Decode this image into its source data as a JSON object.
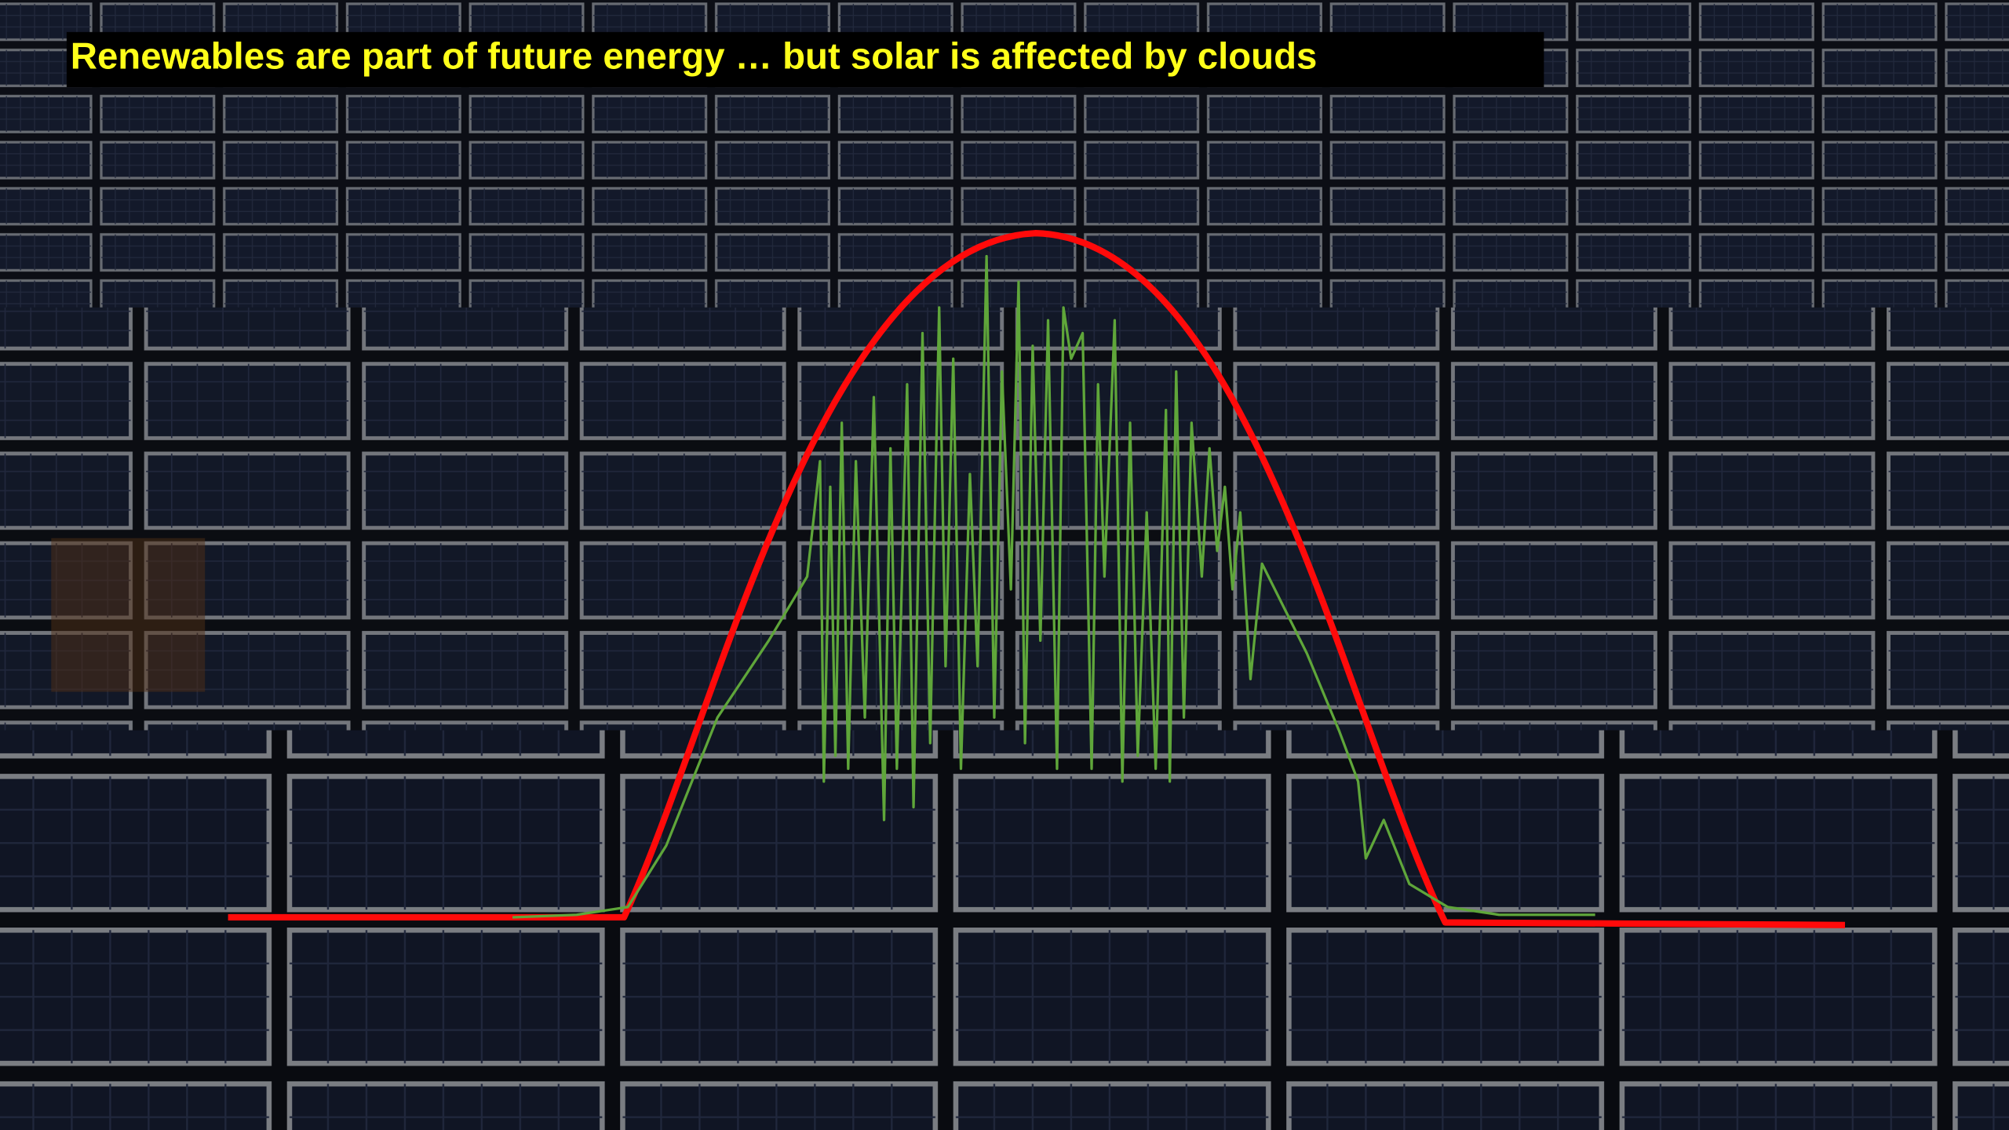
{
  "title": "Renewables are part of future energy … but solar is affected by clouds"
}
